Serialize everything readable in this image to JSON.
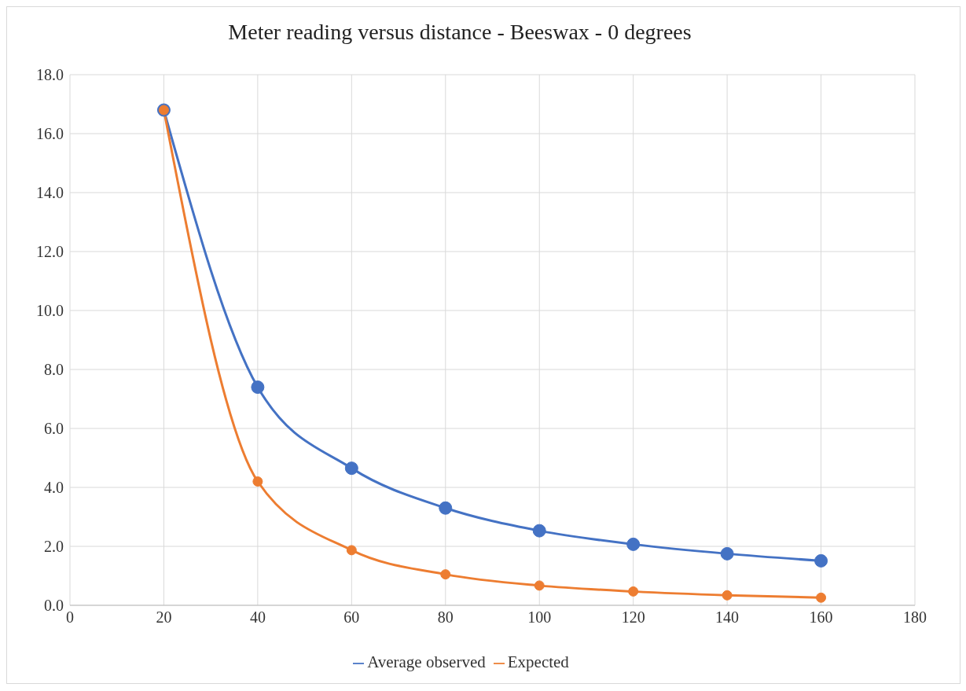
{
  "chart_data": {
    "type": "line",
    "title": "Meter reading versus distance - Beeswax - 0 degrees",
    "x": [
      20,
      40,
      60,
      80,
      100,
      120,
      140,
      160
    ],
    "series": [
      {
        "name": "Average observed",
        "color": "#4472c4",
        "values": [
          16.8,
          7.4,
          4.65,
          3.3,
          2.53,
          2.07,
          1.75,
          1.51
        ]
      },
      {
        "name": "Expected",
        "color": "#ed7d31",
        "values": [
          16.8,
          4.2,
          1.87,
          1.05,
          0.67,
          0.47,
          0.34,
          0.26
        ]
      }
    ],
    "xlim": [
      0,
      180
    ],
    "xticks": [
      0,
      20,
      40,
      60,
      80,
      100,
      120,
      140,
      160,
      180
    ],
    "ylim": [
      0,
      18
    ],
    "yticks": [
      {
        "value": 0,
        "label": "0.0"
      },
      {
        "value": 2,
        "label": "2.0"
      },
      {
        "value": 4,
        "label": "4.0"
      },
      {
        "value": 6,
        "label": "6.0"
      },
      {
        "value": 8,
        "label": "8.0"
      },
      {
        "value": 10,
        "label": "10.0"
      },
      {
        "value": 12,
        "label": "12.0"
      },
      {
        "value": 14,
        "label": "14.0"
      },
      {
        "value": 16,
        "label": "16.0"
      },
      {
        "value": 18,
        "label": "18.0"
      }
    ],
    "grid": true,
    "legend": "bottom",
    "marker": "circle",
    "line_style": "solid"
  }
}
